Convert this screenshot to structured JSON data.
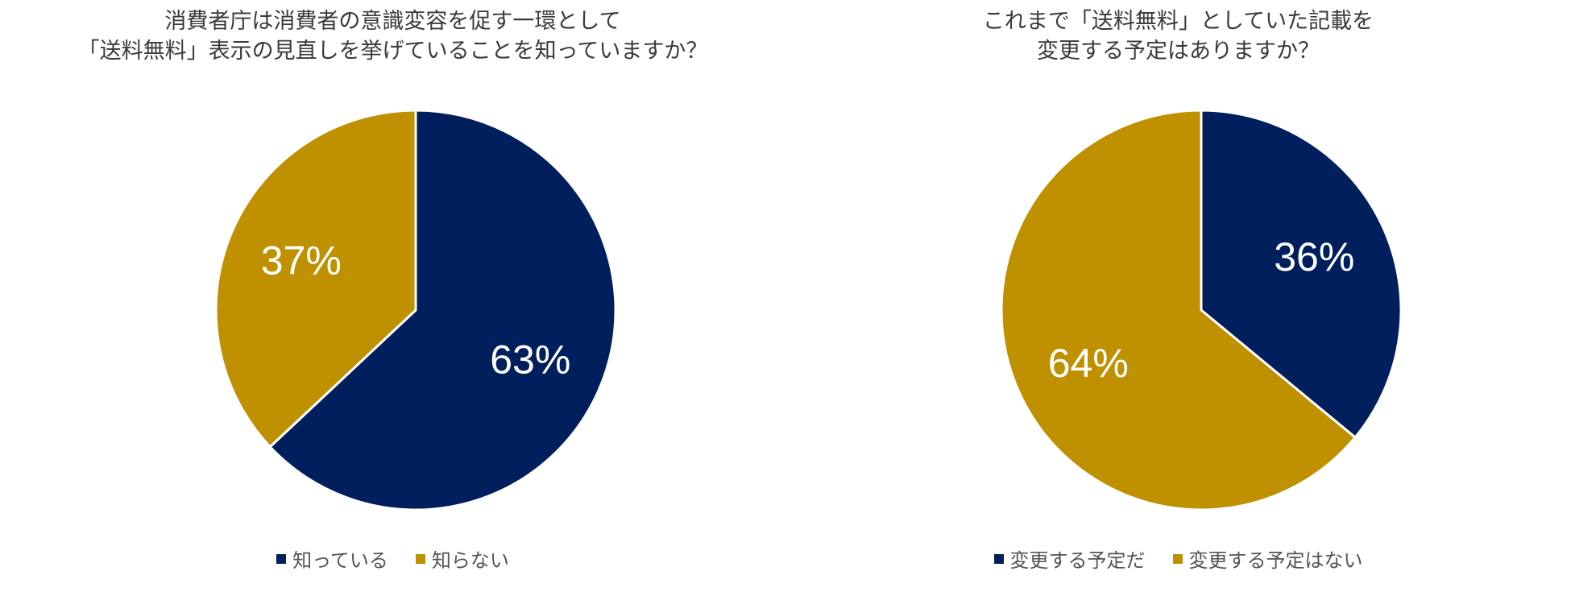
{
  "colors": {
    "navy": "#001f5c",
    "gold": "#bf9000",
    "label": "#ffffff",
    "separator": "#ffffff"
  },
  "chart_data": [
    {
      "type": "pie",
      "title_lines": [
        "消費者庁は消費者の意識変容を促す一環として",
        "「送料無料」表示の見直しを挙げていることを知っていますか？"
      ],
      "slices": [
        {
          "label": "知っている",
          "value": 63,
          "display": "63%",
          "color": "#001f5c"
        },
        {
          "label": "知らない",
          "value": 37,
          "display": "37%",
          "color": "#bf9000"
        }
      ],
      "start": "12 o'clock",
      "direction": "clockwise",
      "legend_position": "bottom"
    },
    {
      "type": "pie",
      "title_lines": [
        "これまで「送料無料」としていた記載を",
        "変更する予定はありますか？"
      ],
      "slices": [
        {
          "label": "変更する予定だ",
          "value": 36,
          "display": "36%",
          "color": "#001f5c"
        },
        {
          "label": "変更する予定はない",
          "value": 64,
          "display": "64%",
          "color": "#bf9000"
        }
      ],
      "start": "12 o'clock",
      "direction": "clockwise",
      "legend_position": "bottom"
    }
  ]
}
